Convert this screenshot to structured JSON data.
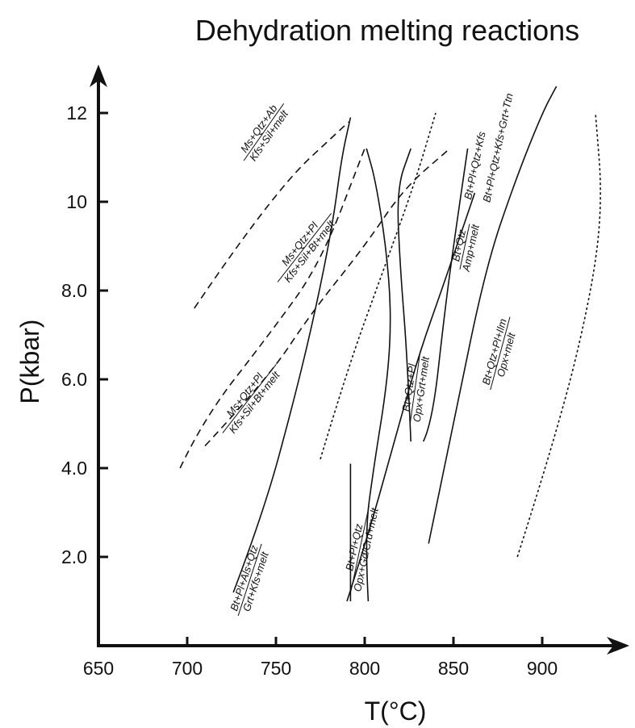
{
  "chart_data": {
    "type": "line",
    "title": "Dehydration melting reactions",
    "xlabel": "T(°C)",
    "ylabel": "P(kbar)",
    "xlim": [
      650,
      935
    ],
    "ylim": [
      0,
      13
    ],
    "x_ticks": [
      {
        "value": 650,
        "label": "650"
      },
      {
        "value": 700,
        "label": "700"
      },
      {
        "value": 750,
        "label": "750"
      },
      {
        "value": 800,
        "label": "800"
      },
      {
        "value": 850,
        "label": "850"
      },
      {
        "value": 900,
        "label": "900"
      }
    ],
    "y_ticks": [
      {
        "value": 2,
        "label": "2.0"
      },
      {
        "value": 4,
        "label": "4.0"
      },
      {
        "value": 6,
        "label": "6.0"
      },
      {
        "value": 8,
        "label": "8.0"
      },
      {
        "value": 10,
        "label": "10"
      },
      {
        "value": 12,
        "label": "12"
      }
    ],
    "grid": false,
    "series": [
      {
        "style": "dashed",
        "points": [
          [
            704,
            7.6
          ],
          [
            748,
            10.2
          ],
          [
            791,
            11.8
          ]
        ]
      },
      {
        "style": "dashed",
        "points": [
          [
            696,
            4.0
          ],
          [
            709,
            5.1
          ],
          [
            746,
            7.0
          ],
          [
            775,
            8.6
          ],
          [
            800,
            11.2
          ]
        ]
      },
      {
        "style": "dashed",
        "points": [
          [
            710,
            4.5
          ],
          [
            745,
            6.0
          ],
          [
            770,
            7.5
          ],
          [
            800,
            9.0
          ],
          [
            822,
            10.3
          ],
          [
            848,
            11.2
          ]
        ]
      },
      {
        "style": "dotted",
        "points": [
          [
            775,
            4.2
          ],
          [
            790,
            6.2
          ],
          [
            810,
            8.4
          ],
          [
            828,
            10.4
          ],
          [
            840,
            12.0
          ]
        ]
      },
      {
        "style": "dotted",
        "points": [
          [
            886,
            2.0
          ],
          [
            910,
            5.0
          ],
          [
            928,
            8.0
          ],
          [
            934,
            10.0
          ],
          [
            930,
            12.0
          ]
        ]
      },
      {
        "style": "solid",
        "points": [
          [
            726,
            1.2
          ],
          [
            743,
            3.0
          ],
          [
            760,
            5.5
          ],
          [
            772,
            7.5
          ],
          [
            782,
            9.5
          ],
          [
            787,
            11.0
          ],
          [
            792,
            11.9
          ]
        ]
      },
      {
        "style": "solid",
        "points": [
          [
            802,
            1.0
          ],
          [
            800,
            2.5
          ],
          [
            805,
            4.0
          ],
          [
            813,
            6.0
          ],
          [
            815,
            7.5
          ],
          [
            812,
            9.0
          ],
          [
            806,
            10.5
          ],
          [
            801,
            11.2
          ]
        ]
      },
      {
        "style": "solid",
        "points": [
          [
            790,
            1.0
          ],
          [
            802,
            2.5
          ],
          [
            816,
            4.5
          ],
          [
            830,
            6.5
          ],
          [
            845,
            8.2
          ],
          [
            862,
            10.2
          ]
        ]
      },
      {
        "style": "solid",
        "points": [
          [
            826,
            4.6
          ],
          [
            824,
            6.5
          ],
          [
            820,
            8.5
          ],
          [
            818,
            10.3
          ],
          [
            826,
            11.2
          ]
        ]
      },
      {
        "style": "solid",
        "points": [
          [
            792,
            4.1
          ],
          [
            792,
            1.0
          ]
        ]
      },
      {
        "style": "solid",
        "points": [
          [
            833,
            4.6
          ],
          [
            838,
            5.0
          ],
          [
            845,
            7.5
          ],
          [
            850,
            9.0
          ],
          [
            858,
            11.2
          ]
        ]
      },
      {
        "style": "solid",
        "points": [
          [
            836,
            2.3
          ],
          [
            850,
            5.0
          ],
          [
            868,
            8.5
          ],
          [
            885,
            10.5
          ],
          [
            900,
            12.0
          ],
          [
            908,
            12.6
          ]
        ]
      }
    ],
    "reactions": [
      {
        "line1": "Ms+Qtz+Ab",
        "line2": "Kfs+Sil+melt",
        "x": 742,
        "y": 11.6,
        "angle": -55
      },
      {
        "line1": "Ms+Qtz+Pl",
        "line2": "Kfs+Sil+Bt+melt",
        "x": 765,
        "y": 9.0,
        "angle": -52
      },
      {
        "line1": "Ms+Qtz+Pl",
        "line2": "Kfs+Sil+Bt+melt",
        "x": 734,
        "y": 5.6,
        "angle": -52
      },
      {
        "line1": "Bt+Pl+Als+Qtz",
        "line2": "Grt+Kfs+melt",
        "x": 734,
        "y": 1.5,
        "angle": -72
      },
      {
        "line1": "Bt+Pl+Qtz",
        "line2": "Opx+Gd/Crd+melt",
        "x": 796,
        "y": 2.2,
        "angle": -78
      },
      {
        "line1": "Bt+Qtz+Pl",
        "line2": "Opx+Grt+melt",
        "x": 827,
        "y": 5.8,
        "angle": -82
      },
      {
        "line1": "Bt+Qtz",
        "line2": "Amp+melt",
        "x": 855,
        "y": 9.0,
        "angle": -78
      },
      {
        "line1": "Bt+Pl+Qtz+Kfs",
        "line2": "",
        "x": 864,
        "y": 10.8,
        "angle": -78
      },
      {
        "line1": "Bt+Pl+Qtz+Kfs+Grt+Ttn",
        "line2": "",
        "x": 877,
        "y": 11.2,
        "angle": -78
      },
      {
        "line1": "Bt+Qtz+Pl+Ilm",
        "line2": "Opx+melt",
        "x": 875,
        "y": 6.6,
        "angle": -75
      }
    ]
  }
}
